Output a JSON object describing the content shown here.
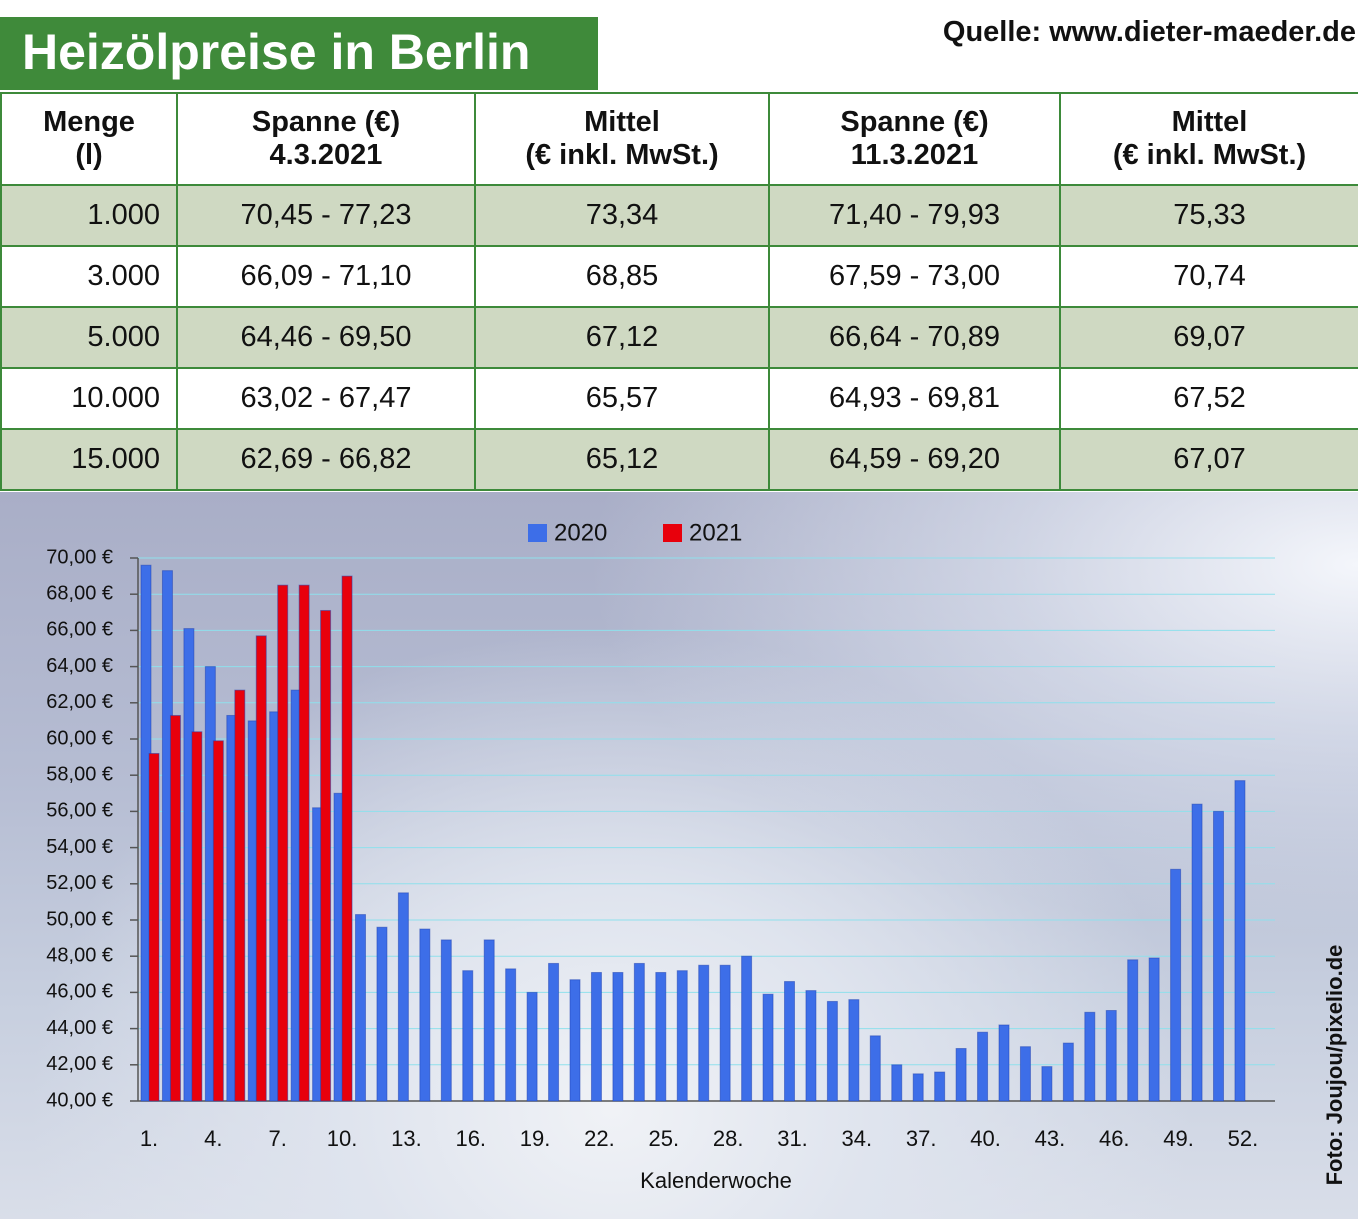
{
  "header": {
    "title": "Heizölpreise in Berlin",
    "source": "Quelle: www.dieter-maeder.de"
  },
  "table": {
    "headers": [
      "Menge\n(l)",
      "Spanne (€)\n4.3.2021",
      "Mittel\n(€ inkl. MwSt.)",
      "Spanne (€)\n11.3.2021",
      "Mittel\n(€ inkl. MwSt.)"
    ],
    "rows": [
      [
        "1.000",
        "70,45 - 77,23",
        "73,34",
        "71,40 - 79,93",
        "75,33"
      ],
      [
        "3.000",
        "66,09 - 71,10",
        "68,85",
        "67,59 - 73,00",
        "70,74"
      ],
      [
        "5.000",
        "64,46 - 69,50",
        "67,12",
        "66,64 - 70,89",
        "69,07"
      ],
      [
        "10.000",
        "63,02 - 67,47",
        "65,57",
        "64,93 - 69,81",
        "67,52"
      ],
      [
        "15.000",
        "62,69 - 66,82",
        "65,12",
        "64,59 - 69,20",
        "67,07"
      ]
    ]
  },
  "chart_data": {
    "type": "bar",
    "x_label": "Kalenderwoche",
    "categories": [
      "1.",
      null,
      null,
      "4.",
      null,
      null,
      "7.",
      null,
      null,
      "10.",
      null,
      null,
      "13.",
      null,
      null,
      "16.",
      null,
      null,
      "19.",
      null,
      null,
      "22.",
      null,
      null,
      "25.",
      null,
      null,
      "28.",
      null,
      null,
      "31.",
      null,
      null,
      "34.",
      null,
      null,
      "37.",
      null,
      null,
      "40.",
      null,
      null,
      "43.",
      null,
      null,
      "46.",
      null,
      null,
      "49.",
      null,
      null,
      "52."
    ],
    "series": [
      {
        "name": "2020",
        "color": "#3d6ee8",
        "values": [
          69.6,
          69.3,
          66.1,
          64.0,
          61.3,
          61.0,
          61.5,
          62.7,
          56.2,
          57.0,
          50.3,
          49.6,
          51.5,
          49.5,
          48.9,
          47.2,
          48.9,
          47.3,
          46.0,
          47.6,
          46.7,
          47.1,
          47.1,
          47.6,
          47.1,
          47.2,
          47.5,
          47.5,
          48.0,
          45.9,
          46.6,
          46.1,
          45.5,
          45.6,
          43.6,
          42.0,
          41.5,
          41.6,
          42.9,
          43.8,
          44.2,
          43.0,
          41.9,
          43.2,
          44.9,
          45.0,
          47.8,
          47.9,
          52.8,
          56.4,
          56.0,
          57.7
        ]
      },
      {
        "name": "2021",
        "color": "#e8000c",
        "values": [
          59.2,
          61.3,
          60.4,
          59.9,
          62.7,
          65.7,
          68.5,
          68.5,
          67.1,
          69.0,
          null,
          null,
          null,
          null,
          null,
          null,
          null,
          null,
          null,
          null,
          null,
          null,
          null,
          null,
          null,
          null,
          null,
          null,
          null,
          null,
          null,
          null,
          null,
          null,
          null,
          null,
          null,
          null,
          null,
          null,
          null,
          null,
          null,
          null,
          null,
          null,
          null,
          null,
          null,
          null,
          null,
          null
        ]
      }
    ],
    "ylim": [
      40,
      70
    ],
    "yticks": [
      {
        "value": 40,
        "label": "40,00 €"
      },
      {
        "value": 42,
        "label": "42,00 €"
      },
      {
        "value": 44,
        "label": "44,00 €"
      },
      {
        "value": 46,
        "label": "46,00 €"
      },
      {
        "value": 48,
        "label": "48,00 €"
      },
      {
        "value": 50,
        "label": "50,00 €"
      },
      {
        "value": 52,
        "label": "52,00 €"
      },
      {
        "value": 54,
        "label": "54,00 €"
      },
      {
        "value": 56,
        "label": "56,00 €"
      },
      {
        "value": 58,
        "label": "58,00 €"
      },
      {
        "value": 60,
        "label": "60,00 €"
      },
      {
        "value": 62,
        "label": "62,00 €"
      },
      {
        "value": 64,
        "label": "64,00 €"
      },
      {
        "value": 66,
        "label": "66,00 €"
      },
      {
        "value": 68,
        "label": "68,00 €"
      },
      {
        "value": 70,
        "label": "70,00 €"
      }
    ],
    "grid": true,
    "legend": "top"
  },
  "credit": "Foto: Joujou/pixelio.de"
}
